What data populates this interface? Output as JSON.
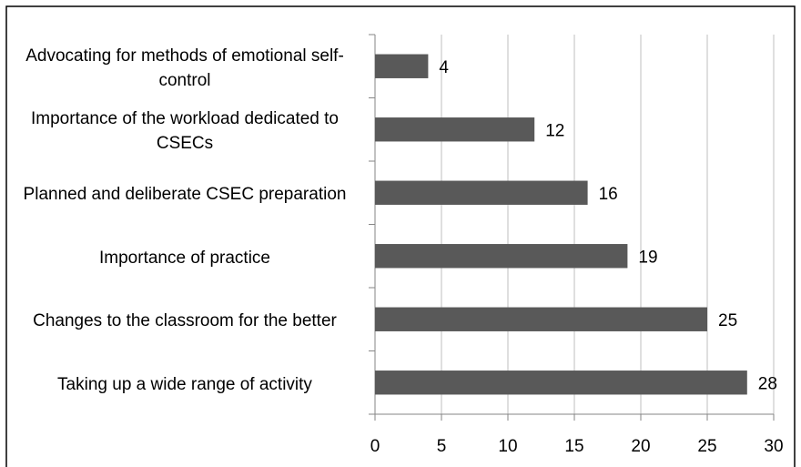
{
  "chart_data": {
    "type": "bar",
    "orientation": "horizontal",
    "categories": [
      "Advocating for methods of emotional self-control",
      "Importance of the workload dedicated to CSECs",
      "Planned and deliberate CSEC preparation",
      "Importance of practice",
      "Changes to the classroom for the better",
      "Taking up a wide range of activity"
    ],
    "values": [
      4,
      12,
      16,
      19,
      25,
      28
    ],
    "color": "#595959",
    "xlim": [
      0,
      30
    ],
    "xticks": [
      0,
      5,
      10,
      15,
      20,
      25,
      30
    ],
    "grid": true
  }
}
